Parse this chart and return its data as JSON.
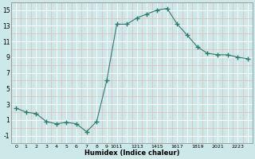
{
  "x": [
    0,
    1,
    2,
    3,
    4,
    5,
    6,
    7,
    8,
    9,
    10,
    11,
    12,
    13,
    14,
    15,
    16,
    17,
    18,
    19,
    20,
    21,
    22,
    23
  ],
  "y": [
    2.5,
    2.0,
    1.8,
    0.8,
    0.5,
    0.7,
    0.5,
    -0.5,
    0.8,
    6.0,
    13.2,
    13.2,
    14.0,
    14.5,
    15.0,
    15.2,
    13.2,
    11.8,
    10.3,
    9.5,
    9.3,
    9.3,
    9.0,
    8.8
  ],
  "xlabel": "Humidex (Indice chaleur)",
  "ylim": [
    -2,
    16
  ],
  "xlim": [
    -0.5,
    23.5
  ],
  "yticks": [
    -1,
    1,
    3,
    5,
    7,
    9,
    11,
    13,
    15
  ],
  "xtick_labels": [
    "0",
    "1",
    "2",
    "3",
    "4",
    "5",
    "6",
    "7",
    "8",
    "9",
    "1011",
    "1213",
    "1415",
    "1617",
    "1819",
    "2021",
    "2223"
  ],
  "line_color": "#2d7d6e",
  "marker_color": "#2d7d6e",
  "bg_color": "#cce8e8",
  "grid_major_color": "#ffffff",
  "grid_minor_color": "#e8b8b8"
}
